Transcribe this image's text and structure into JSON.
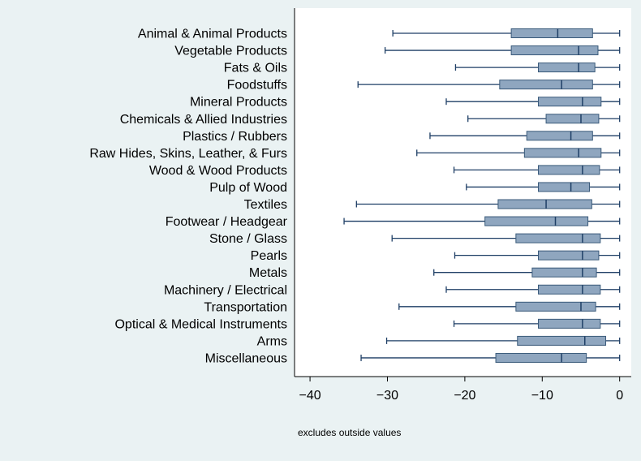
{
  "chart_data": {
    "type": "box",
    "orientation": "horizontal",
    "categories": [
      "Animal & Animal Products",
      "Vegetable Products",
      "Fats & Oils",
      "Foodstuffs",
      "Mineral Products",
      "Chemicals & Allied Industries",
      "Plastics / Rubbers",
      "Raw Hides, Skins, Leather, & Furs",
      "Wood & Wood Products",
      "Pulp of Wood",
      "Textiles",
      "Footwear / Headgear",
      "Stone / Glass",
      "Pearls",
      "Metals",
      "Machinery / Electrical",
      "Transportation",
      "Optical & Medical Instruments",
      "Arms",
      "Miscellaneous"
    ],
    "boxes": [
      {
        "whisker_low": -29.3,
        "q1": -14.0,
        "median": -8.0,
        "q3": -3.5,
        "whisker_high": 0
      },
      {
        "whisker_low": -30.3,
        "q1": -14.0,
        "median": -5.3,
        "q3": -2.8,
        "whisker_high": 0
      },
      {
        "whisker_low": -21.2,
        "q1": -10.5,
        "median": -5.3,
        "q3": -3.2,
        "whisker_high": 0
      },
      {
        "whisker_low": -33.8,
        "q1": -15.5,
        "median": -7.5,
        "q3": -3.5,
        "whisker_high": 0
      },
      {
        "whisker_low": -22.4,
        "q1": -10.5,
        "median": -4.8,
        "q3": -2.4,
        "whisker_high": 0
      },
      {
        "whisker_low": -19.6,
        "q1": -9.5,
        "median": -5.0,
        "q3": -2.7,
        "whisker_high": 0
      },
      {
        "whisker_low": -24.5,
        "q1": -12.0,
        "median": -6.3,
        "q3": -3.5,
        "whisker_high": 0
      },
      {
        "whisker_low": -26.2,
        "q1": -12.3,
        "median": -5.3,
        "q3": -2.4,
        "whisker_high": 0
      },
      {
        "whisker_low": -21.4,
        "q1": -10.5,
        "median": -4.8,
        "q3": -2.6,
        "whisker_high": 0
      },
      {
        "whisker_low": -19.8,
        "q1": -10.5,
        "median": -6.3,
        "q3": -3.9,
        "whisker_high": 0
      },
      {
        "whisker_low": -34.0,
        "q1": -15.7,
        "median": -9.5,
        "q3": -3.6,
        "whisker_high": 0
      },
      {
        "whisker_low": -35.6,
        "q1": -17.4,
        "median": -8.3,
        "q3": -4.1,
        "whisker_high": 0
      },
      {
        "whisker_low": -29.4,
        "q1": -13.4,
        "median": -4.8,
        "q3": -2.5,
        "whisker_high": 0
      },
      {
        "whisker_low": -21.3,
        "q1": -10.5,
        "median": -4.8,
        "q3": -2.7,
        "whisker_high": 0
      },
      {
        "whisker_low": -24.0,
        "q1": -11.3,
        "median": -4.8,
        "q3": -3.0,
        "whisker_high": 0
      },
      {
        "whisker_low": -22.4,
        "q1": -10.5,
        "median": -4.8,
        "q3": -2.5,
        "whisker_high": 0
      },
      {
        "whisker_low": -28.5,
        "q1": -13.4,
        "median": -5.0,
        "q3": -3.1,
        "whisker_high": 0
      },
      {
        "whisker_low": -21.4,
        "q1": -10.5,
        "median": -4.8,
        "q3": -2.5,
        "whisker_high": 0
      },
      {
        "whisker_low": -30.1,
        "q1": -13.2,
        "median": -4.5,
        "q3": -1.8,
        "whisker_high": 0
      },
      {
        "whisker_low": -33.4,
        "q1": -16.0,
        "median": -7.5,
        "q3": -4.3,
        "whisker_high": 0
      }
    ],
    "x_ticks": [
      -40,
      -30,
      -20,
      -10,
      0
    ],
    "x_tick_labels": [
      "−40",
      "−30",
      "−20",
      "−10",
      "0"
    ],
    "xlim": [
      -42,
      1.5
    ],
    "grid": false,
    "note": "excludes outside values",
    "colors": {
      "background": "#eaf2f3",
      "plot_background": "#ffffff",
      "box_fill": "#8fa6bf",
      "box_stroke": "#3a5a7a",
      "whisker": "#1f3f66",
      "median": "#1f3f66"
    }
  }
}
